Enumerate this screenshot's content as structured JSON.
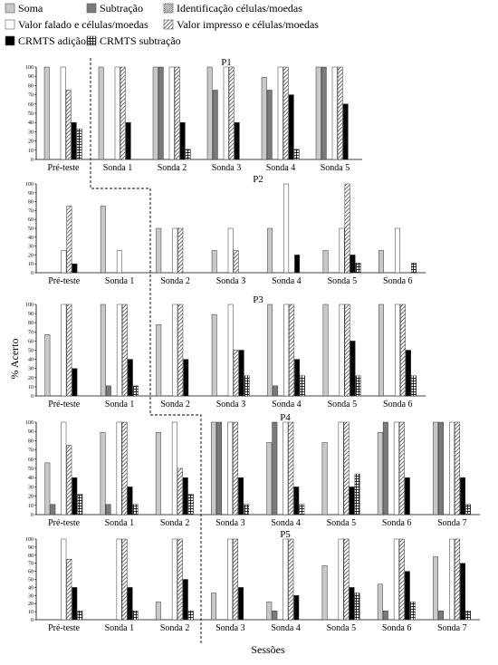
{
  "chart_data": {
    "type": "bar",
    "ylabel": "% Acerto",
    "xlabel": "Sessões",
    "ylim": [
      0,
      100
    ],
    "yticks": [
      0,
      10,
      20,
      30,
      40,
      50,
      60,
      70,
      80,
      90,
      100
    ],
    "legend": {
      "placement": "top",
      "entries": [
        {
          "name": "Soma",
          "pattern": "light-gray"
        },
        {
          "name": "Subtração",
          "pattern": "dark-gray"
        },
        {
          "name": "Identificação células/moedas",
          "pattern": "checker"
        },
        {
          "name": "Valor falado e células/moedas",
          "pattern": "white"
        },
        {
          "name": "Valor impresso e células/moedas",
          "pattern": "diagonal-hatch"
        },
        {
          "name": "CRMTS adição",
          "pattern": "black"
        },
        {
          "name": "CRMTS subtração",
          "pattern": "grid"
        }
      ]
    },
    "colors": {
      "soma": "#c8c8c8",
      "subtracao": "#7a7a7a",
      "black": "#000000"
    },
    "panels": [
      {
        "title": "P1",
        "categories": [
          "Pré-teste",
          "Sonda 1",
          "Sonda 2",
          "Sonda 3",
          "Sonda 4",
          "Sonda 5"
        ],
        "series": [
          {
            "name": "Soma",
            "values": [
              100,
              100,
              100,
              100,
              89,
              100
            ]
          },
          {
            "name": "Subtração",
            "values": [
              0,
              0,
              100,
              75,
              75,
              100
            ]
          },
          {
            "name": "Identificação células/moedas",
            "values": [
              0,
              0,
              0,
              0,
              0,
              0
            ]
          },
          {
            "name": "Valor falado e células/moedas",
            "values": [
              100,
              100,
              100,
              100,
              100,
              100
            ]
          },
          {
            "name": "Valor impresso e células/moedas",
            "values": [
              75,
              100,
              100,
              100,
              100,
              100
            ]
          },
          {
            "name": "CRMTS adição",
            "values": [
              40,
              40,
              40,
              40,
              70,
              60
            ]
          },
          {
            "name": "CRMTS subtração",
            "values": [
              33,
              0,
              11,
              0,
              11,
              0
            ]
          }
        ]
      },
      {
        "title": "P2",
        "categories": [
          "Pré-teste",
          "Sonda 1",
          "Sonda 2",
          "Sonda 3",
          "Sonda 4",
          "Sonda 5",
          "Sonda 6"
        ],
        "series": [
          {
            "name": "Soma",
            "values": [
              0,
              75,
              50,
              25,
              50,
              25,
              25
            ]
          },
          {
            "name": "Subtração",
            "values": [
              0,
              0,
              0,
              0,
              0,
              0,
              0
            ]
          },
          {
            "name": "Identificação células/moedas",
            "values": [
              0,
              0,
              0,
              0,
              0,
              0,
              0
            ]
          },
          {
            "name": "Valor falado e células/moedas",
            "values": [
              25,
              25,
              50,
              50,
              100,
              50,
              50
            ]
          },
          {
            "name": "Valor impresso e células/moedas",
            "values": [
              75,
              0,
              50,
              25,
              0,
              100,
              0
            ]
          },
          {
            "name": "CRMTS adição",
            "values": [
              10,
              0,
              0,
              0,
              20,
              20,
              0
            ]
          },
          {
            "name": "CRMTS subtração",
            "values": [
              0,
              0,
              0,
              0,
              0,
              11,
              11
            ]
          }
        ]
      },
      {
        "title": "P3",
        "categories": [
          "Pré-teste",
          "Sonda 1",
          "Sonda 2",
          "Sonda 3",
          "Sonda 4",
          "Sonda 5",
          "Sonda 6"
        ],
        "series": [
          {
            "name": "Soma",
            "values": [
              67,
              100,
              78,
              89,
              100,
              100,
              100
            ]
          },
          {
            "name": "Subtração",
            "values": [
              0,
              11,
              0,
              0,
              11,
              0,
              0
            ]
          },
          {
            "name": "Identificação células/moedas",
            "values": [
              0,
              0,
              0,
              0,
              0,
              0,
              0
            ]
          },
          {
            "name": "Valor falado e células/moedas",
            "values": [
              100,
              100,
              100,
              100,
              100,
              100,
              100
            ]
          },
          {
            "name": "Valor impresso e células/moedas",
            "values": [
              100,
              100,
              100,
              50,
              100,
              100,
              100
            ]
          },
          {
            "name": "CRMTS adição",
            "values": [
              30,
              40,
              40,
              50,
              40,
              60,
              50
            ]
          },
          {
            "name": "CRMTS subtração",
            "values": [
              0,
              11,
              0,
              22,
              22,
              22,
              22
            ]
          }
        ]
      },
      {
        "title": "P4",
        "categories": [
          "Pré-teste",
          "Sonda 1",
          "Sonda 2",
          "Sonda 3",
          "Sonda 4",
          "Sonda 5",
          "Sonda 6",
          "Sonda 7"
        ],
        "series": [
          {
            "name": "Soma",
            "values": [
              56,
              89,
              89,
              100,
              78,
              78,
              89,
              100
            ]
          },
          {
            "name": "Subtração",
            "values": [
              11,
              11,
              0,
              100,
              100,
              0,
              100,
              100
            ]
          },
          {
            "name": "Identificação células/moedas",
            "values": [
              0,
              0,
              0,
              0,
              0,
              0,
              0,
              0
            ]
          },
          {
            "name": "Valor falado e células/moedas",
            "values": [
              100,
              100,
              100,
              100,
              100,
              100,
              100,
              100
            ]
          },
          {
            "name": "Valor impresso e células/moedas",
            "values": [
              75,
              100,
              50,
              100,
              100,
              100,
              100,
              100
            ]
          },
          {
            "name": "CRMTS adição",
            "values": [
              40,
              30,
              40,
              40,
              30,
              30,
              40,
              40
            ]
          },
          {
            "name": "CRMTS subtração",
            "values": [
              22,
              11,
              22,
              11,
              11,
              44,
              0,
              11
            ]
          }
        ]
      },
      {
        "title": "P5",
        "categories": [
          "Pré-teste",
          "Sonda 1",
          "Sonda 2",
          "Sonda 3",
          "Sonda 4",
          "Sonda 5",
          "Sonda 6",
          "Sonda 7"
        ],
        "series": [
          {
            "name": "Soma",
            "values": [
              0,
              0,
              22,
              33,
              22,
              67,
              44,
              78
            ]
          },
          {
            "name": "Subtração",
            "values": [
              0,
              0,
              0,
              0,
              11,
              0,
              11,
              11
            ]
          },
          {
            "name": "Identificação células/moedas",
            "values": [
              0,
              0,
              0,
              0,
              0,
              0,
              0,
              0
            ]
          },
          {
            "name": "Valor falado e células/moedas",
            "values": [
              100,
              100,
              100,
              100,
              100,
              100,
              100,
              100
            ]
          },
          {
            "name": "Valor impresso e células/moedas",
            "values": [
              75,
              100,
              100,
              100,
              100,
              100,
              100,
              100
            ]
          },
          {
            "name": "CRMTS adição",
            "values": [
              40,
              40,
              50,
              40,
              30,
              40,
              60,
              70
            ]
          },
          {
            "name": "CRMTS subtração",
            "values": [
              11,
              11,
              11,
              0,
              0,
              33,
              22,
              11
            ]
          }
        ]
      }
    ]
  }
}
